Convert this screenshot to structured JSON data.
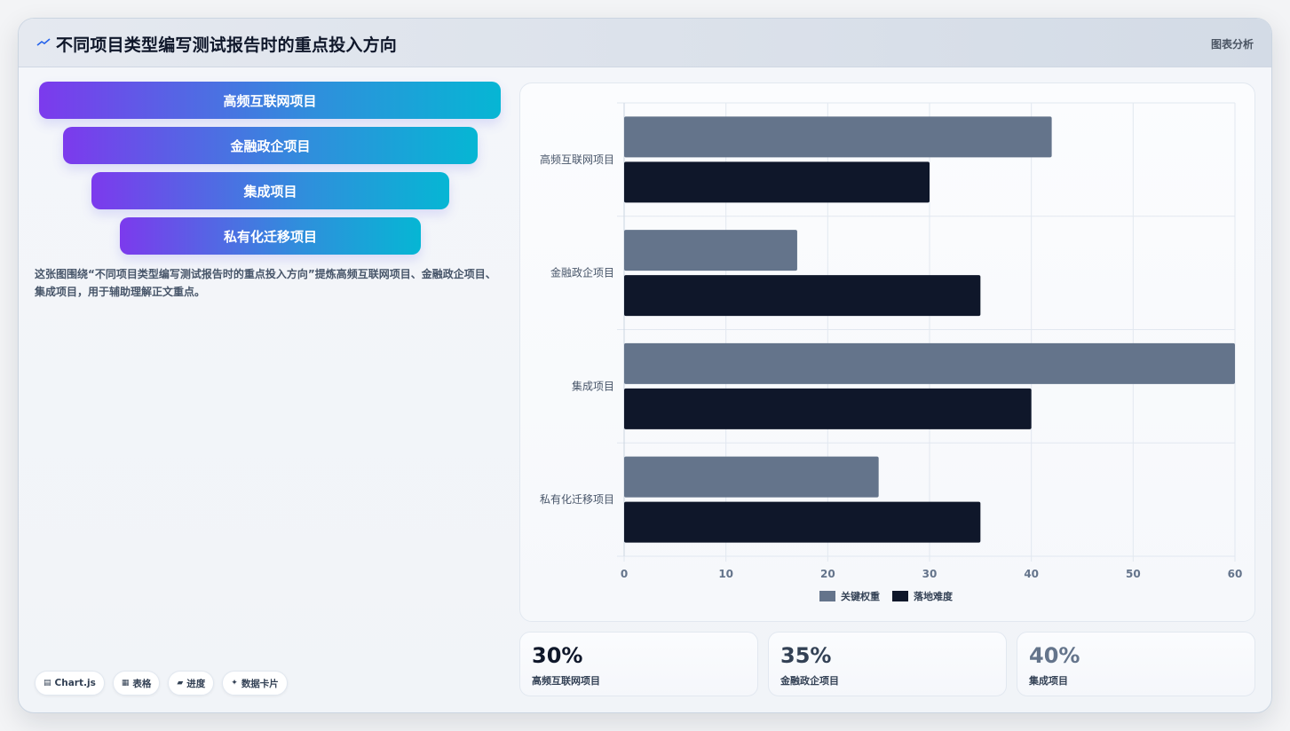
{
  "header": {
    "title": "不同项目类型编写测试报告时的重点投入方向",
    "right_label": "图表分析"
  },
  "funnel": {
    "items": [
      "高频互联网项目",
      "金融政企项目",
      "集成项目",
      "私有化迁移项目"
    ]
  },
  "description": "这张图围绕“不同项目类型编写测试报告时的重点投入方向”提炼高频互联网项目、金融政企项目、集成项目，用于辅助理解正文重点。",
  "tags": [
    {
      "icon": "chart-icon",
      "glyph": "▤",
      "label": "Chart.js"
    },
    {
      "icon": "table-icon",
      "glyph": "▦",
      "label": "表格"
    },
    {
      "icon": "progress-icon",
      "glyph": "▰",
      "label": "进度"
    },
    {
      "icon": "sparkle-icon",
      "glyph": "✦",
      "label": "数据卡片"
    }
  ],
  "chart_data": {
    "type": "bar",
    "orientation": "horizontal",
    "categories": [
      "高频互联网项目",
      "金融政企项目",
      "集成项目",
      "私有化迁移项目"
    ],
    "series": [
      {
        "name": "关键权重",
        "values": [
          42,
          17,
          60,
          25
        ],
        "color": "#64748b"
      },
      {
        "name": "落地难度",
        "values": [
          30,
          35,
          40,
          35
        ],
        "color": "#0f172a"
      }
    ],
    "xlim": [
      0,
      60
    ],
    "x_ticks": [
      0,
      10,
      20,
      30,
      40,
      50,
      60
    ],
    "grid": true,
    "legend_position": "bottom"
  },
  "kpis": [
    {
      "value": "30%",
      "label": "高频互联网项目",
      "color": "#0f172a"
    },
    {
      "value": "35%",
      "label": "金融政企项目",
      "color": "#334155"
    },
    {
      "value": "40%",
      "label": "集成项目",
      "color": "#64748b"
    }
  ]
}
